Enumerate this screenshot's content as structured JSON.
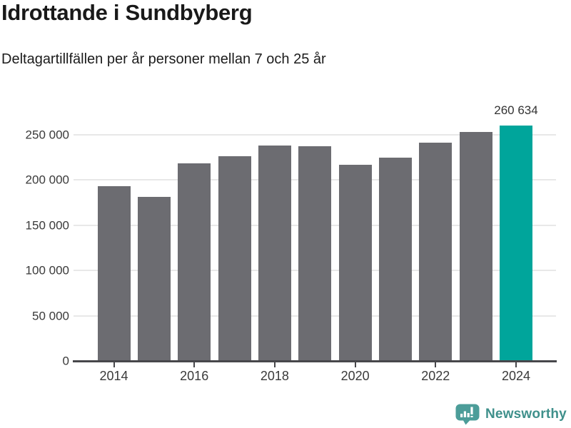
{
  "header": {
    "title": "Idrottande i Sundbyberg",
    "subtitle": "Deltagartillfällen per år personer mellan 7 och 25 år"
  },
  "chart_data": {
    "type": "bar",
    "title": "Idrottande i Sundbyberg",
    "subtitle": "Deltagartillfällen per år personer mellan 7 och 25 år",
    "categories": [
      "2014",
      "2015",
      "2016",
      "2017",
      "2018",
      "2019",
      "2020",
      "2021",
      "2022",
      "2023",
      "2024"
    ],
    "values": [
      193500,
      181500,
      218500,
      226500,
      238000,
      237000,
      217000,
      224500,
      241500,
      253500,
      260634
    ],
    "highlight_index": 10,
    "annotation": {
      "text": "260 634",
      "category": "2024"
    },
    "xlabel": "",
    "ylabel": "",
    "ylim": [
      0,
      265000
    ],
    "yticks": [
      0,
      50000,
      100000,
      150000,
      200000,
      250000
    ],
    "ytick_labels": [
      "0",
      "50 000",
      "100 000",
      "150 000",
      "200 000",
      "250 000"
    ],
    "xtick_labels": [
      "2014",
      "2016",
      "2018",
      "2020",
      "2022",
      "2024"
    ],
    "xtick_indices": [
      0,
      2,
      4,
      6,
      8,
      10
    ],
    "grid": "horizontal",
    "legend_position": "none",
    "colors": {
      "bar": "#6C6C71",
      "highlight": "#00A59B",
      "gridline": "#E8E8E8",
      "axis": "#47474B",
      "tick_label": "#3A3A3A",
      "annotation": "#333333"
    }
  },
  "footer": {
    "brand": "Newsworthy",
    "brand_color": "#3F908B",
    "icon": "newsworthy-logo-icon",
    "icon_color": "#4C9D99"
  }
}
